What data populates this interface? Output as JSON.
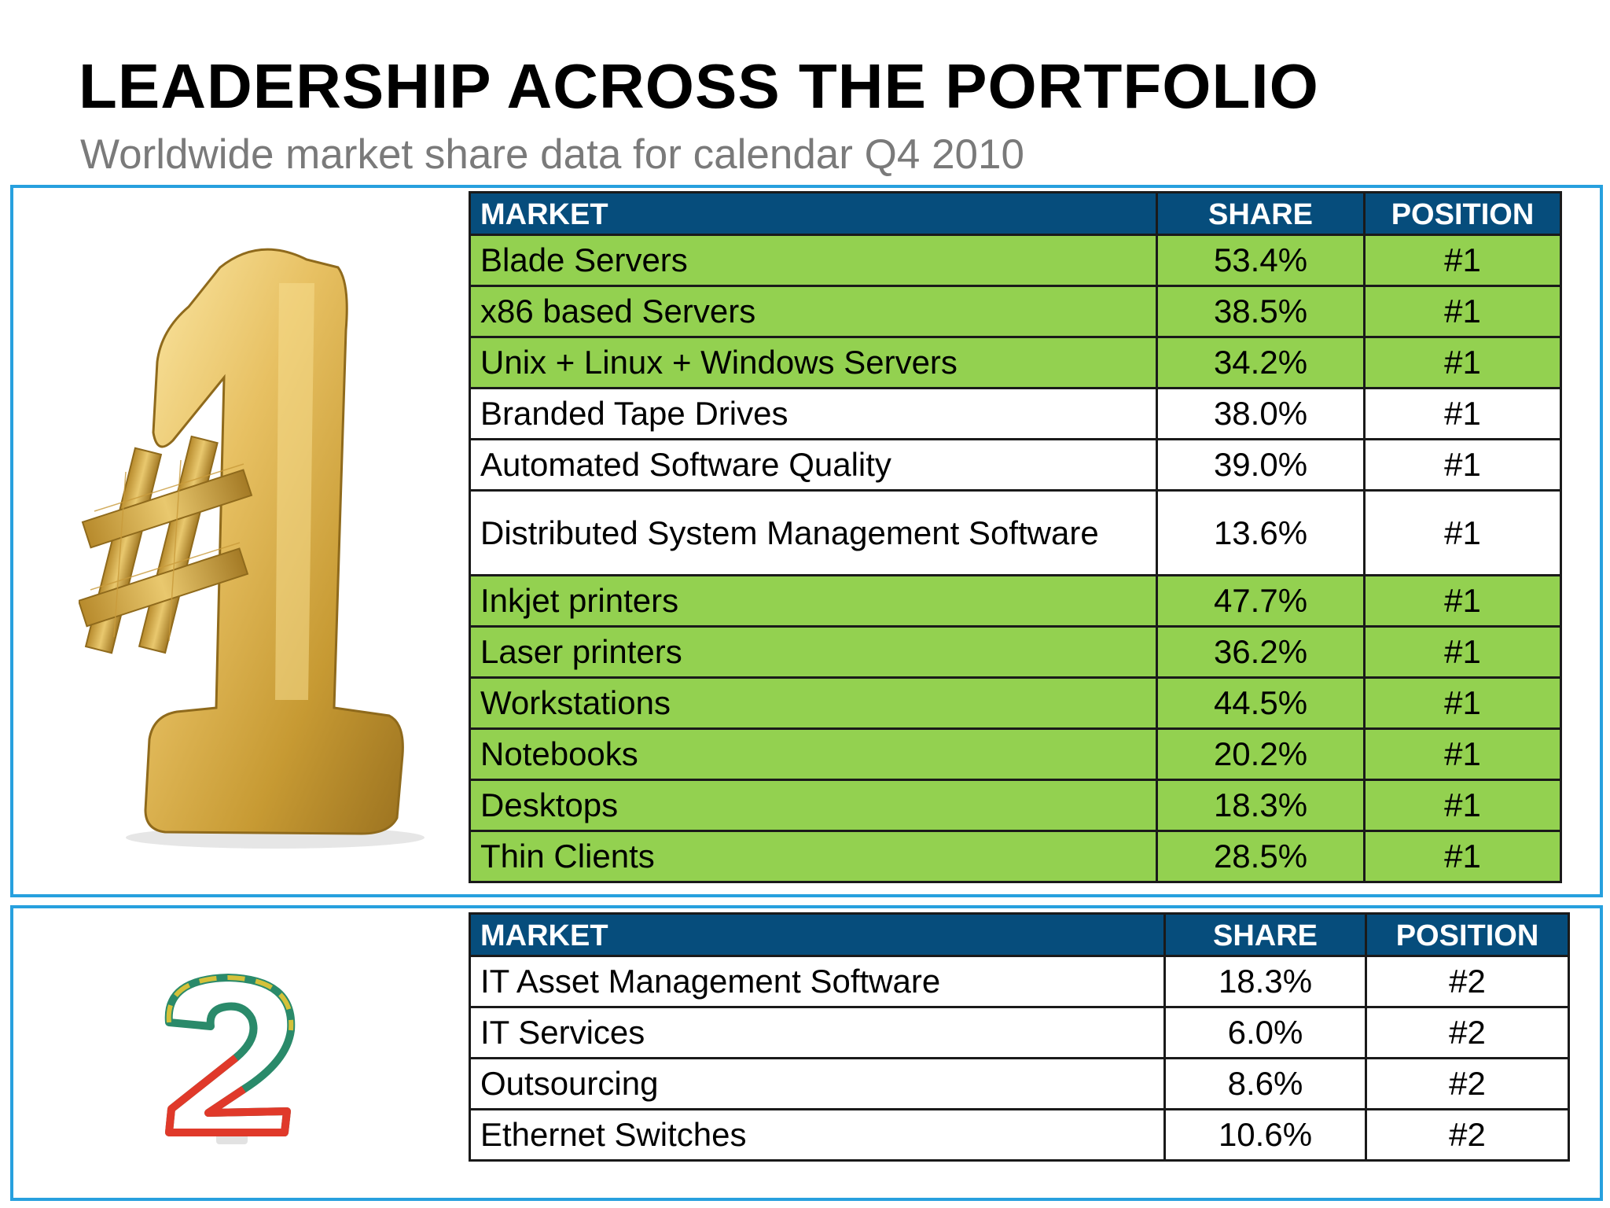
{
  "header": {
    "title": "LEADERSHIP ACROSS THE PORTFOLIO",
    "subtitle": "Worldwide market share data for calendar Q4 2010"
  },
  "images": {
    "number_one": "gold #1 figure",
    "number_two": "striped 2 birthday candle"
  },
  "colors": {
    "header_bg": "#064d7c",
    "highlight_row": "#93d150",
    "panel_border": "#27a0de",
    "subtitle_text": "#7a7a7a"
  },
  "table1": {
    "columns": [
      "MARKET",
      "SHARE",
      "POSITION"
    ],
    "rows": [
      {
        "market": "Blade Servers",
        "share": "53.4%",
        "position": "#1",
        "highlight": true
      },
      {
        "market": "x86 based Servers",
        "share": "38.5%",
        "position": "#1",
        "highlight": true
      },
      {
        "market": "Unix + Linux + Windows Servers",
        "share": "34.2%",
        "position": "#1",
        "highlight": true
      },
      {
        "market": "Branded Tape Drives",
        "share": "38.0%",
        "position": "#1",
        "highlight": false
      },
      {
        "market": "Automated Software Quality",
        "share": "39.0%",
        "position": "#1",
        "highlight": false
      },
      {
        "market": "Distributed System Management Software",
        "share": "13.6%",
        "position": "#1",
        "highlight": false
      },
      {
        "market": "Inkjet printers",
        "share": "47.7%",
        "position": "#1",
        "highlight": true
      },
      {
        "market": "Laser printers",
        "share": "36.2%",
        "position": "#1",
        "highlight": true
      },
      {
        "market": "Workstations",
        "share": "44.5%",
        "position": "#1",
        "highlight": true
      },
      {
        "market": "Notebooks",
        "share": "20.2%",
        "position": "#1",
        "highlight": true
      },
      {
        "market": "Desktops",
        "share": "18.3%",
        "position": "#1",
        "highlight": true
      },
      {
        "market": "Thin Clients",
        "share": "28.5%",
        "position": "#1",
        "highlight": true
      }
    ]
  },
  "table2": {
    "columns": [
      "MARKET",
      "SHARE",
      "POSITION"
    ],
    "rows": [
      {
        "market": "IT Asset Management Software",
        "share": "18.3%",
        "position": "#2",
        "highlight": false
      },
      {
        "market": "IT Services",
        "share": "6.0%",
        "position": "#2",
        "highlight": false
      },
      {
        "market": "Outsourcing",
        "share": "8.6%",
        "position": "#2",
        "highlight": false
      },
      {
        "market": "Ethernet Switches",
        "share": "10.6%",
        "position": "#2",
        "highlight": false
      }
    ]
  }
}
